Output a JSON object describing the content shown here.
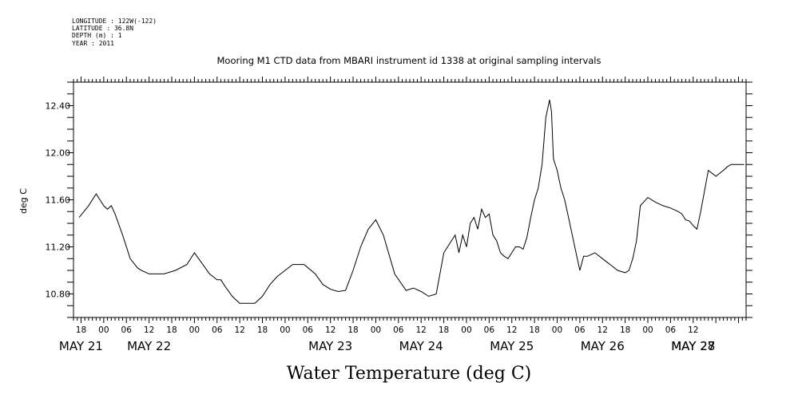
{
  "header": {
    "meta_lines": [
      "LONGITUDE : 122W(-122)",
      "LATITUDE : 36.8N",
      "DEPTH (m) : 1",
      "YEAR : 2011"
    ],
    "title": "Mooring M1 CTD data from MBARI instrument id 1338 at original sampling intervals"
  },
  "caption": "Water Temperature (deg C)",
  "chart_data": {
    "type": "line",
    "title": "Mooring M1 CTD data from MBARI instrument id 1338 at original sampling intervals",
    "xlabel": "",
    "ylabel": "deg C",
    "ylim": [
      10.6,
      12.6
    ],
    "xlim_hours": [
      -8,
      170
    ],
    "y_ticks": [
      "10.80",
      "11.20",
      "11.60",
      "12.00",
      "12.40"
    ],
    "hour_labels": [
      "18",
      "00",
      "06",
      "12",
      "18",
      "00",
      "06",
      "12",
      "18",
      "00",
      "06",
      "12",
      "18",
      "00",
      "06",
      "12",
      "18",
      "00",
      "06",
      "12",
      "18",
      "00",
      "06",
      "12",
      "18",
      "00",
      "06",
      "12"
    ],
    "day_labels": [
      "MAY 21",
      "MAY 22",
      "MAY 23",
      "MAY 24",
      "MAY 25",
      "MAY 26",
      "MAY 27",
      "MAY 28"
    ],
    "x_axis_note": "x = hours since 2011-05-21 00:00",
    "series": [
      {
        "x": [
          -6.5,
          -4,
          -2,
          -1,
          0,
          1,
          2,
          3,
          5,
          7,
          9,
          10,
          12,
          16,
          19,
          22,
          24,
          28,
          30,
          31,
          32,
          34,
          36,
          38,
          40,
          42,
          44,
          46,
          48,
          50,
          53,
          56,
          58,
          60,
          62,
          64,
          66,
          68,
          70,
          72,
          74,
          77,
          80,
          82,
          84,
          86,
          88,
          90,
          92,
          93,
          94,
          95,
          96,
          97,
          98,
          99,
          100,
          101,
          102,
          103,
          104,
          105,
          106,
          107,
          108,
          109,
          110,
          111,
          112,
          113,
          114,
          115,
          116,
          117,
          118,
          118.5,
          119,
          120,
          121,
          122,
          123,
          124,
          125,
          126,
          127,
          128,
          130,
          132,
          134,
          136,
          138,
          139,
          140,
          141,
          142,
          144,
          146,
          148,
          150,
          152,
          153,
          154,
          155,
          156,
          157,
          158,
          160,
          162,
          164,
          165,
          166,
          167,
          168,
          169,
          169.5
        ],
        "y": [
          11.45,
          11.55,
          11.65,
          11.6,
          11.55,
          11.52,
          11.55,
          11.48,
          11.3,
          11.1,
          11.02,
          11.0,
          10.97,
          10.97,
          11.0,
          11.05,
          11.15,
          10.97,
          10.92,
          10.92,
          10.87,
          10.78,
          10.72,
          10.72,
          10.72,
          10.78,
          10.88,
          10.95,
          11.0,
          11.05,
          11.05,
          10.97,
          10.88,
          10.84,
          10.82,
          10.83,
          11.0,
          11.2,
          11.35,
          11.43,
          11.3,
          10.97,
          10.83,
          10.85,
          10.82,
          10.78,
          10.8,
          11.15,
          11.25,
          11.3,
          11.15,
          11.3,
          11.2,
          11.4,
          11.45,
          11.35,
          11.52,
          11.45,
          11.48,
          11.3,
          11.25,
          11.15,
          11.12,
          11.1,
          11.15,
          11.2,
          11.2,
          11.18,
          11.28,
          11.45,
          11.6,
          11.7,
          11.9,
          12.3,
          12.45,
          12.35,
          11.95,
          11.85,
          11.7,
          11.6,
          11.45,
          11.3,
          11.15,
          11.0,
          11.12,
          11.12,
          11.15,
          11.1,
          11.05,
          11.0,
          10.98,
          11.0,
          11.1,
          11.25,
          11.55,
          11.62,
          11.58,
          11.55,
          11.53,
          11.5,
          11.48,
          11.43,
          11.42,
          11.38,
          11.35,
          11.5,
          11.85,
          11.8,
          11.85,
          11.88,
          11.9,
          11.9,
          11.9,
          11.9,
          11.9
        ],
        "color": "#000000"
      }
    ]
  }
}
